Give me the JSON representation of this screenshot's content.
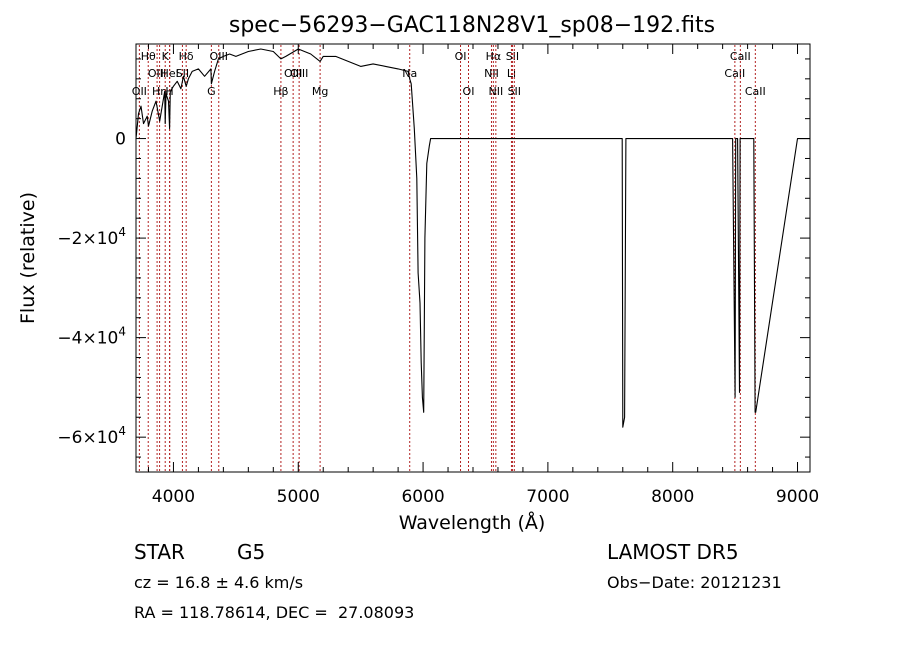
{
  "chart_data": {
    "type": "line",
    "title": "spec−56293−GAC118N28V1_sp08−192.fits",
    "xlabel": "Wavelength (Å)",
    "ylabel": "Flux (relative)",
    "xlim": [
      3700,
      9100
    ],
    "ylim": [
      -67000,
      19000
    ],
    "x_ticks": [
      {
        "value": 4000,
        "label": "4000"
      },
      {
        "value": 5000,
        "label": "5000"
      },
      {
        "value": 6000,
        "label": "6000"
      },
      {
        "value": 7000,
        "label": "7000"
      },
      {
        "value": 8000,
        "label": "8000"
      },
      {
        "value": 9000,
        "label": "9000"
      }
    ],
    "y_ticks": [
      {
        "value": 0,
        "label": "0",
        "exp": ""
      },
      {
        "value": -20000,
        "label": "−2×10",
        "exp": "4"
      },
      {
        "value": -40000,
        "label": "−4×10",
        "exp": "4"
      },
      {
        "value": -60000,
        "label": "−6×10",
        "exp": "4"
      }
    ],
    "grid": false,
    "line_color": "#000000",
    "marker_color": "#b22222",
    "line_markers": [
      {
        "name": "OII",
        "x": 3727,
        "row": 2
      },
      {
        "name": "Hθ",
        "x": 3798,
        "row": 0
      },
      {
        "name": "OIII",
        "x": 3869,
        "row": 1
      },
      {
        "name": "Hη",
        "x": 3889,
        "row": 2
      },
      {
        "name": "K",
        "x": 3934,
        "row": 0
      },
      {
        "name": "HeI",
        "x": 3970,
        "row": 1
      },
      {
        "name": "H",
        "x": 3969,
        "row": 2
      },
      {
        "name": "Hδ",
        "x": 4102,
        "row": 0
      },
      {
        "name": "SII",
        "x": 4072,
        "row": 1
      },
      {
        "name": "G",
        "x": 4304,
        "row": 2
      },
      {
        "name": "OIII",
        "x": 4363,
        "row": 0
      },
      {
        "name": "Hβ",
        "x": 4861,
        "row": 2
      },
      {
        "name": "OIII",
        "x": 4959,
        "row": 1
      },
      {
        "name": "OIII",
        "x": 5007,
        "row": 1
      },
      {
        "name": "Mg",
        "x": 5175,
        "row": 2
      },
      {
        "name": "Na",
        "x": 5893,
        "row": 1
      },
      {
        "name": "OI",
        "x": 6300,
        "row": 0
      },
      {
        "name": "OI",
        "x": 6364,
        "row": 2
      },
      {
        "name": "NII",
        "x": 6548,
        "row": 1
      },
      {
        "name": "Hα",
        "x": 6563,
        "row": 0
      },
      {
        "name": "NII",
        "x": 6583,
        "row": 2
      },
      {
        "name": "Li",
        "x": 6708,
        "row": 1
      },
      {
        "name": "SII",
        "x": 6716,
        "row": 0
      },
      {
        "name": "SII",
        "x": 6731,
        "row": 2
      },
      {
        "name": "CaII",
        "x": 8498,
        "row": 1
      },
      {
        "name": "CaII",
        "x": 8542,
        "row": 0
      },
      {
        "name": "CaII",
        "x": 8662,
        "row": 2
      }
    ],
    "series": [
      {
        "x": [
          3700,
          3720,
          3740,
          3760,
          3790,
          3800,
          3830,
          3860,
          3890,
          3930,
          3934,
          3940,
          3960,
          3969,
          3975,
          4000,
          4030,
          4060,
          4080,
          4102,
          4120,
          4150,
          4200,
          4250,
          4300,
          4304,
          4330,
          4360,
          4400,
          4450,
          4500,
          4600,
          4700,
          4800,
          4861,
          4900,
          5000,
          5100,
          5175,
          5200,
          5300,
          5400,
          5500,
          5600,
          5700,
          5800,
          5880,
          5893,
          5905,
          5930,
          5950,
          5960,
          5975,
          5985,
          5995,
          6005,
          6015,
          6030,
          6050,
          6060,
          6080,
          6100,
          6500,
          7000,
          7500,
          7595,
          7600,
          7615,
          7625,
          7645,
          7660,
          7700,
          8000,
          8400,
          8480,
          8500,
          8505,
          8515,
          8520,
          8535,
          8540,
          8545,
          8560,
          8600,
          8650,
          8660,
          8665,
          9000,
          9100
        ],
        "y": [
          0,
          5000,
          6500,
          3000,
          4500,
          2500,
          5500,
          7500,
          3500,
          9500,
          3000,
          9000,
          7500,
          2000,
          9500,
          10500,
          11500,
          10000,
          12500,
          10500,
          12000,
          13500,
          14000,
          12500,
          14000,
          11000,
          13500,
          16000,
          16500,
          17000,
          16500,
          17500,
          18000,
          17500,
          16000,
          16500,
          18000,
          17000,
          15500,
          16500,
          16500,
          15500,
          14500,
          15000,
          14500,
          14000,
          13500,
          12000,
          11000,
          2000,
          -8000,
          -27000,
          -33000,
          -45000,
          -52000,
          -55000,
          -20000,
          -5000,
          -1500,
          0,
          0,
          0,
          0,
          0,
          0,
          0,
          -58000,
          -56000,
          0,
          0,
          0,
          0,
          0,
          0,
          0,
          -52000,
          0,
          0,
          0,
          -51000,
          0,
          0,
          0,
          0,
          0,
          -55000,
          -55000,
          0,
          0
        ]
      }
    ]
  },
  "info": {
    "object_class": "STAR",
    "subclass": "G5",
    "survey": "LAMOST DR5",
    "redshift_line": "cz = 16.8 ± 4.6 km/s",
    "obs_date_line": "Obs−Date: 20121231",
    "coords_line": "RA = 118.78614, DEC =  27.08093"
  }
}
